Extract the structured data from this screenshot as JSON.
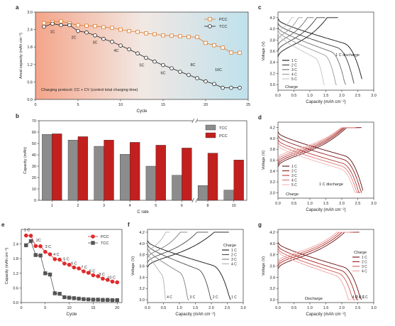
{
  "chart_data": [
    {
      "id": "a",
      "panel_label": "a",
      "type": "scatter",
      "xlabel": "Cycle",
      "ylabel": "Areal capacity (mAh cm⁻²)",
      "xlim": [
        0,
        25
      ],
      "ylim": [
        0,
        3.0
      ],
      "xticks": [
        0,
        5,
        10,
        15,
        20,
        25
      ],
      "yticks": [
        0.0,
        0.6,
        1.2,
        1.8,
        2.4,
        3.0
      ],
      "background": "gradient salmon to light blue",
      "series": [
        {
          "name": "PCC",
          "color": "#e07b2a",
          "marker": "square",
          "x": [
            1,
            2,
            3,
            4,
            5,
            6,
            7,
            8,
            9,
            10,
            11,
            12,
            13,
            14,
            15,
            16,
            17,
            18,
            19,
            20,
            21,
            22,
            23,
            24
          ],
          "y": [
            2.62,
            2.66,
            2.68,
            2.62,
            2.55,
            2.53,
            2.52,
            2.48,
            2.46,
            2.4,
            2.35,
            2.32,
            2.27,
            2.24,
            2.2,
            2.19,
            2.17,
            2.15,
            2.14,
            1.94,
            1.86,
            1.78,
            1.61,
            1.6
          ]
        },
        {
          "name": "TCC",
          "color": "#222222",
          "marker": "circle",
          "x": [
            1,
            2,
            3,
            4,
            5,
            6,
            7,
            8,
            9,
            10,
            11,
            12,
            13,
            14,
            15,
            16,
            17,
            18,
            19,
            20,
            21,
            22,
            23,
            24
          ],
          "y": [
            2.5,
            2.6,
            2.55,
            2.55,
            2.35,
            2.3,
            2.2,
            2.08,
            1.98,
            1.85,
            1.72,
            1.58,
            1.43,
            1.3,
            1.18,
            1.07,
            0.95,
            0.84,
            0.73,
            0.62,
            0.53,
            0.4,
            0.4,
            0.4
          ]
        }
      ],
      "annotations": [
        {
          "text": "1C",
          "x": 2.0,
          "y": 2.28
        },
        {
          "text": "2C",
          "x": 4.5,
          "y": 2.08
        },
        {
          "text": "3C",
          "x": 7.0,
          "y": 1.92
        },
        {
          "text": "4C",
          "x": 9.5,
          "y": 1.64
        },
        {
          "text": "5C",
          "x": 12.5,
          "y": 1.14
        },
        {
          "text": "6C",
          "x": 15.0,
          "y": 0.86
        },
        {
          "text": "8C",
          "x": 18.5,
          "y": 1.15
        },
        {
          "text": "10C",
          "x": 21.5,
          "y": 0.97
        }
      ],
      "footnote": "Charging protocol: CC + CV (control total charging time)"
    },
    {
      "id": "b",
      "panel_label": "b",
      "type": "bar",
      "xlabel": "C rate",
      "ylabel": "Capacity (mAh)",
      "ylim": [
        0,
        70
      ],
      "yticks": [
        0,
        10,
        20,
        30,
        40,
        50,
        60,
        70
      ],
      "categories": [
        "1",
        "2",
        "3",
        "4",
        "5",
        "6",
        "8",
        "10"
      ],
      "axis_break_between": [
        "6",
        "8"
      ],
      "series": [
        {
          "name": "TCC",
          "color": "#8c8c8c",
          "values": [
            58,
            53,
            47.5,
            40.5,
            30,
            22,
            13,
            9
          ]
        },
        {
          "name": "PCC",
          "color": "#c21f1f",
          "values": [
            58.5,
            56,
            53,
            51,
            48.5,
            46,
            41.5,
            35.5
          ]
        }
      ]
    },
    {
      "id": "c",
      "panel_label": "c",
      "type": "line",
      "xlabel": "Capacity (mAh cm⁻²)",
      "ylabel": "Voltage (V)",
      "xlim": [
        0,
        3
      ],
      "ylim": [
        2.9,
        4.3
      ],
      "xticks": [
        0,
        0.5,
        1.0,
        1.5,
        2.0,
        2.5,
        3.0
      ],
      "yticks": [
        3.0,
        3.2,
        3.4,
        3.6,
        3.8,
        4.0,
        4.2
      ],
      "legend": [
        "1 C",
        "2 C",
        "3 C",
        "4 C",
        "5 C"
      ],
      "colors": [
        "#111111",
        "#3d3d3d",
        "#6c6c6c",
        "#9a9a9a",
        "#c4c4c4"
      ],
      "labels": {
        "discharge": "1 C discharge",
        "charge": "Charge"
      },
      "charge_end": [
        1.88,
        1.48,
        1.12,
        0.78,
        0.52
      ],
      "charge_start": [
        3.5,
        3.6,
        3.7,
        3.8,
        3.92
      ],
      "discharge_cap": [
        2.63,
        2.38,
        2.12,
        1.85,
        1.48
      ],
      "discharge_start": [
        4.18,
        4.1,
        4.03,
        3.97,
        3.92
      ]
    },
    {
      "id": "d",
      "panel_label": "d",
      "type": "line",
      "xlabel": "Capacity (mAh cm⁻²)",
      "ylabel": "Voltage (V)",
      "xlim": [
        0,
        3
      ],
      "ylim": [
        2.9,
        4.3
      ],
      "xticks": [
        0,
        0.5,
        1.0,
        1.5,
        2.0,
        2.5,
        3.0
      ],
      "yticks": [
        3.0,
        3.2,
        3.4,
        3.6,
        3.8,
        4.0,
        4.2
      ],
      "legend": [
        "1 C",
        "2 C",
        "3 C",
        "4 C",
        "5 C"
      ],
      "colors": [
        "#5e0c0c",
        "#8f1b1b",
        "#bb3a3a",
        "#d97a7a",
        "#f0b3b3"
      ],
      "labels": {
        "discharge": "1 C discharge",
        "charge": "Charge"
      },
      "charge_end": [
        2.62,
        2.55,
        2.5,
        2.45,
        2.42
      ],
      "charge_start": [
        3.48,
        3.52,
        3.56,
        3.6,
        3.64
      ],
      "discharge_cap": [
        2.66,
        2.62,
        2.58,
        2.54,
        2.5
      ],
      "discharge_start": [
        4.12,
        4.05,
        3.98,
        3.93,
        3.88
      ]
    },
    {
      "id": "e",
      "panel_label": "e",
      "type": "line",
      "xlabel": "Cycle",
      "ylabel": "Capacity (mAh cm⁻²)",
      "xlim": [
        0,
        21
      ],
      "ylim": [
        0,
        3.0
      ],
      "xticks": [
        0,
        5,
        10,
        15,
        20
      ],
      "yticks": [
        0.0,
        0.6,
        1.2,
        1.8,
        2.4
      ],
      "series": [
        {
          "name": "PCC",
          "color": "#e02a2a",
          "marker": "circle",
          "x": [
            1,
            2,
            3,
            4,
            5,
            6,
            7,
            8,
            9,
            10,
            11,
            12,
            13,
            14,
            15,
            16,
            17,
            18,
            19,
            20
          ],
          "y": [
            2.75,
            2.74,
            2.32,
            2.31,
            2.08,
            1.98,
            1.78,
            1.76,
            1.6,
            1.55,
            1.44,
            1.4,
            1.28,
            1.22,
            1.12,
            1.08,
            0.98,
            0.93,
            0.86,
            0.83
          ]
        },
        {
          "name": "TCC",
          "color": "#555555",
          "marker": "square",
          "x": [
            1,
            2,
            3,
            4,
            5,
            6,
            7,
            8,
            9,
            10,
            11,
            12,
            13,
            14,
            15,
            16,
            17,
            18,
            19,
            20
          ],
          "y": [
            2.35,
            2.52,
            1.95,
            1.93,
            1.2,
            1.15,
            0.38,
            0.36,
            0.22,
            0.2,
            0.18,
            0.16,
            0.14,
            0.13,
            0.12,
            0.12,
            0.11,
            0.11,
            0.1,
            0.1
          ]
        }
      ],
      "annotations": [
        {
          "text": "1 C",
          "x": 1.2,
          "y": 2.92
        },
        {
          "text": "2C",
          "x": 3.6,
          "y": 2.5
        },
        {
          "text": "3 C",
          "x": 5.6,
          "y": 2.24
        },
        {
          "text": "4 C",
          "x": 7.3,
          "y": 1.92
        },
        {
          "text": "5 C",
          "x": 9.4,
          "y": 1.74
        },
        {
          "text": "6 C",
          "x": 11.0,
          "y": 1.56
        },
        {
          "text": "7 C",
          "x": 13.1,
          "y": 1.4
        },
        {
          "text": "8 C",
          "x": 14.8,
          "y": 1.24
        },
        {
          "text": "9 C",
          "x": 16.8,
          "y": 1.1
        },
        {
          "text": "10 C",
          "x": 18.8,
          "y": 0.98
        }
      ]
    },
    {
      "id": "f",
      "panel_label": "f",
      "type": "line",
      "xlabel": "Capacity (mAh cm⁻²)",
      "ylabel": "Voltage (V)",
      "xlim": [
        0,
        3
      ],
      "ylim": [
        2.95,
        4.25
      ],
      "xticks": [
        0,
        0.5,
        1.0,
        1.5,
        2.0,
        2.5,
        3.0
      ],
      "yticks": [
        3.0,
        3.2,
        3.4,
        3.6,
        3.8,
        4.0,
        4.2
      ],
      "legend_title": "Charge",
      "legend": [
        "1 C",
        "2 C",
        "3 C",
        "4 C"
      ],
      "colors": [
        "#111111",
        "#4a4a4a",
        "#7e7e7e",
        "#b0b0b0"
      ],
      "end_labels": [
        "1 C",
        "2 C",
        "3 C",
        "4 C"
      ],
      "charge_end": [
        2.55,
        1.9,
        1.25,
        0.7
      ],
      "charge_start": [
        3.58,
        3.66,
        3.74,
        3.82
      ],
      "discharge_cap": [
        2.6,
        2.02,
        1.3,
        0.58
      ],
      "discharge_start": [
        4.05,
        3.98,
        3.92,
        3.88
      ]
    },
    {
      "id": "g",
      "panel_label": "g",
      "type": "line",
      "xlabel": "Capacity (mAh cm⁻²)",
      "ylabel": "Voltage (V)",
      "xlim": [
        0,
        3
      ],
      "ylim": [
        2.95,
        4.25
      ],
      "xticks": [
        0,
        0.5,
        1.0,
        1.5,
        2.0,
        2.5,
        3.0
      ],
      "yticks": [
        3.0,
        3.2,
        3.4,
        3.6,
        3.8,
        4.0,
        4.2
      ],
      "legend_title": "Charge",
      "legend": [
        "1 C",
        "2 C",
        "3 C",
        "4 C"
      ],
      "colors": [
        "#6b0d0d",
        "#a31f1f",
        "#d45a5a",
        "#f0a3a3"
      ],
      "labels": {
        "discharge": "Discharge"
      },
      "end_labels": [
        "1 C",
        "2 C",
        "3 C",
        "4 C"
      ],
      "charge_end": [
        2.55,
        2.45,
        2.35,
        2.25
      ],
      "charge_start": [
        3.55,
        3.6,
        3.64,
        3.68
      ],
      "discharge_cap": [
        2.62,
        2.52,
        2.42,
        2.3
      ],
      "discharge_start": [
        4.02,
        3.96,
        3.91,
        3.87
      ]
    }
  ]
}
